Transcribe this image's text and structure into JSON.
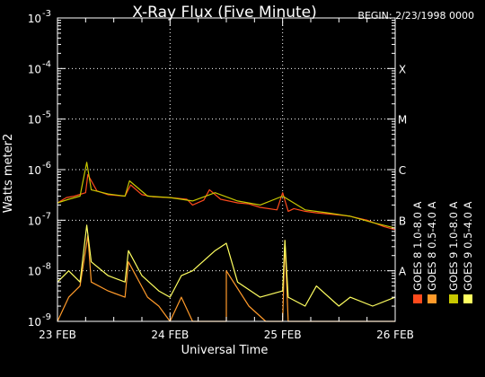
{
  "chart_data": {
    "type": "line",
    "title": "X-Ray Flux (Five Minute)",
    "begin": "BEGIN: 2/23/1998 0000",
    "xlabel": "Universal Time",
    "ylabel": "Watts meter2",
    "x_ticks": [
      "23 FEB",
      "24 FEB",
      "25 FEB",
      "26 FEB"
    ],
    "xlim_days": [
      0,
      3
    ],
    "ylim": [
      1e-09,
      0.001
    ],
    "y_scale": "log",
    "y_tick_base": "10",
    "y_tick_exponents": [
      "-9",
      "-8",
      "-7",
      "-6",
      "-5",
      "-4",
      "-3"
    ],
    "flare_classes": [
      {
        "label": "X",
        "value": 0.0001
      },
      {
        "label": "M",
        "value": 1e-05
      },
      {
        "label": "C",
        "value": 1e-06
      },
      {
        "label": "B",
        "value": 1e-07
      },
      {
        "label": "A",
        "value": 1e-08
      }
    ],
    "grid": "dotted",
    "legend_position": "right, vertical",
    "series": [
      {
        "name": "GOES 8  1.0-8.0 A",
        "color": "#ff4a1c",
        "x": [
          0,
          0.08,
          0.15,
          0.25,
          0.27,
          0.35,
          0.45,
          0.6,
          0.65,
          0.75,
          0.85,
          1.0,
          1.15,
          1.2,
          1.3,
          1.35,
          1.45,
          1.6,
          1.7,
          1.8,
          1.95,
          2.0,
          2.05,
          2.1,
          2.2,
          2.3,
          2.45,
          2.6,
          2.75,
          2.9,
          3.0
        ],
        "y": [
          2.2e-07,
          2.8e-07,
          3e-07,
          3.5e-07,
          8e-07,
          3.8e-07,
          3.2e-07,
          3e-07,
          5e-07,
          3.2e-07,
          2.9e-07,
          2.8e-07,
          2.6e-07,
          2e-07,
          2.5e-07,
          4e-07,
          2.6e-07,
          2.2e-07,
          2.1e-07,
          1.8e-07,
          1.6e-07,
          3.5e-07,
          1.5e-07,
          1.7e-07,
          1.5e-07,
          1.4e-07,
          1.3e-07,
          1.2e-07,
          1e-07,
          7.5e-08,
          6.5e-08
        ]
      },
      {
        "name": "GOES 8  0.5-4.0 A",
        "color": "#ff9a2a",
        "x": [
          0,
          0.1,
          0.2,
          0.27,
          0.3,
          0.45,
          0.6,
          0.63,
          0.8,
          0.9,
          1.0,
          1.1,
          1.2,
          1.5,
          1.5,
          1.7,
          1.85,
          1.95,
          2.0,
          2.02,
          2.05,
          2.1,
          2.5,
          2.7,
          2.9,
          3.0
        ],
        "y": [
          1e-09,
          3e-09,
          5e-09,
          5e-08,
          6e-09,
          4e-09,
          3e-09,
          1.5e-08,
          3e-09,
          2e-09,
          1e-09,
          3e-09,
          1e-09,
          1e-09,
          1e-08,
          2e-09,
          1e-09,
          1e-09,
          1e-09,
          4e-08,
          1e-09,
          1e-09,
          1e-09,
          1e-09,
          1e-09,
          1e-09
        ]
      },
      {
        "name": "GOES 9  1.0-8.0 A",
        "color": "#c8c800",
        "x": [
          0,
          0.1,
          0.2,
          0.26,
          0.3,
          0.45,
          0.6,
          0.64,
          0.8,
          1.0,
          1.2,
          1.4,
          1.6,
          1.8,
          2.0,
          2.2,
          2.4,
          2.6,
          2.8,
          3.0
        ],
        "y": [
          2.2e-07,
          2.6e-07,
          3e-07,
          1.4e-06,
          4e-07,
          3.3e-07,
          3e-07,
          6e-07,
          3e-07,
          2.8e-07,
          2.4e-07,
          3.5e-07,
          2.4e-07,
          2e-07,
          3e-07,
          1.6e-07,
          1.4e-07,
          1.2e-07,
          9e-08,
          7e-08
        ]
      },
      {
        "name": "GOES 9  0.5-4.0 A",
        "color": "#ffff60",
        "x": [
          0,
          0.1,
          0.2,
          0.26,
          0.3,
          0.45,
          0.6,
          0.63,
          0.75,
          0.9,
          1.0,
          1.1,
          1.2,
          1.4,
          1.5,
          1.6,
          1.8,
          2.0,
          2.02,
          2.05,
          2.2,
          2.3,
          2.5,
          2.6,
          2.8,
          3.0
        ],
        "y": [
          6e-09,
          1e-08,
          6e-09,
          8e-08,
          1.5e-08,
          8e-09,
          6e-09,
          2.5e-08,
          8e-09,
          4e-09,
          3e-09,
          8e-09,
          1e-08,
          2.5e-08,
          3.5e-08,
          6e-09,
          3e-09,
          4e-09,
          4e-08,
          3e-09,
          2e-09,
          5e-09,
          2e-09,
          3e-09,
          2e-09,
          3e-09
        ]
      }
    ]
  }
}
